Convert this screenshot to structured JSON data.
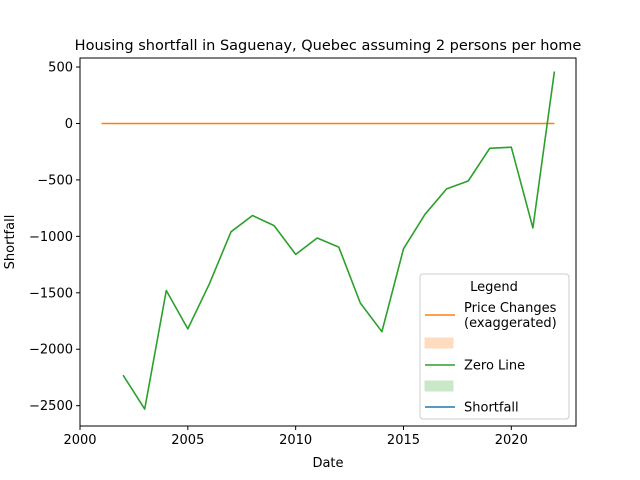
{
  "chart_data": {
    "type": "line",
    "title": "Housing shortfall in Saguenay, Quebec assuming 2 persons per home",
    "xlabel": "Date",
    "ylabel": "Shortfall",
    "xlim": [
      2000,
      2023
    ],
    "ylim": [
      -2680,
      580
    ],
    "x_ticks": [
      2000,
      2005,
      2010,
      2015,
      2020
    ],
    "x_tick_labels": [
      "2000",
      "2005",
      "2010",
      "2015",
      "2020"
    ],
    "y_ticks": [
      500,
      0,
      -500,
      -1000,
      -1500,
      -2000,
      -2500
    ],
    "y_tick_labels": [
      "500",
      "0",
      "−500",
      "−1000",
      "−1500",
      "−2000",
      "−2500"
    ],
    "grid": false,
    "legend": {
      "title": "Legend",
      "position": "bottom-right",
      "entries": [
        {
          "label": "Price Changes\n(exaggerated)",
          "kind": "line",
          "color": "#ff7f0e"
        },
        {
          "label": "",
          "kind": "patch",
          "color": "#ffdcc0"
        },
        {
          "label": "Zero Line",
          "kind": "line",
          "color": "#2ca02c"
        },
        {
          "label": "",
          "kind": "patch",
          "color": "#c8e8c8"
        },
        {
          "label": "Shortfall",
          "kind": "line",
          "color": "#1f77b4"
        }
      ]
    },
    "series": [
      {
        "color": "#ff7f0e",
        "x": [
          2001,
          2022
        ],
        "y": [
          0,
          0
        ]
      },
      {
        "color": "#2ca02c",
        "x": [
          2002,
          2003,
          2004,
          2005,
          2006,
          2007,
          2008,
          2009,
          2010,
          2011,
          2012,
          2013,
          2014,
          2015,
          2016,
          2017,
          2018,
          2019,
          2020,
          2021,
          2022
        ],
        "y": [
          -2230,
          -2530,
          -1480,
          -1820,
          -1420,
          -960,
          -815,
          -905,
          -1160,
          -1015,
          -1095,
          -1590,
          -1845,
          -1110,
          -805,
          -580,
          -510,
          -220,
          -210,
          -925,
          460
        ]
      }
    ]
  }
}
